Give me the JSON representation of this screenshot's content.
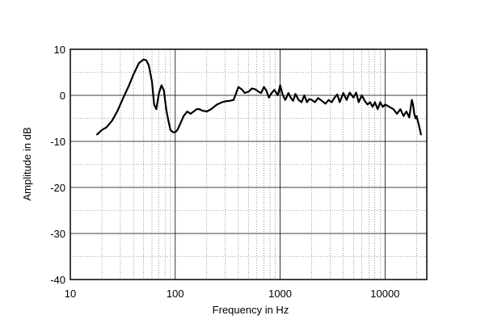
{
  "chart_data": {
    "type": "line",
    "xlabel": "Frequency  in  Hz",
    "ylabel": "Amplitude in dB",
    "x_scale": "log",
    "xlim": [
      10,
      25000
    ],
    "ylim": [
      -40,
      10
    ],
    "x_major_ticks": [
      10,
      100,
      1000,
      10000
    ],
    "x_tick_labels": [
      "10",
      "100",
      "1000",
      "10000"
    ],
    "y_ticks": [
      10,
      0,
      -10,
      -20,
      -30,
      -40
    ],
    "y_tick_labels": [
      "10",
      "0",
      "-10",
      "-20",
      "-30",
      "-40"
    ],
    "y_minor_step": 5,
    "grid": true,
    "line_color": "#000000",
    "series": [
      {
        "x": [
          18,
          20,
          22,
          25,
          28,
          32,
          36,
          40,
          45,
          50,
          53,
          56,
          60,
          63,
          66,
          70,
          74,
          78,
          82,
          86,
          90,
          95,
          100,
          105,
          110,
          115,
          120,
          130,
          140,
          150,
          160,
          170,
          180,
          200,
          220,
          250,
          280,
          300,
          330,
          360,
          400,
          430,
          460,
          500,
          540,
          580,
          620,
          660,
          700,
          740,
          780,
          830,
          880,
          950,
          1000,
          1060,
          1120,
          1200,
          1260,
          1330,
          1400,
          1500,
          1600,
          1700,
          1800,
          1900,
          2000,
          2150,
          2300,
          2500,
          2700,
          2900,
          3100,
          3300,
          3500,
          3700,
          4000,
          4300,
          4600,
          5000,
          5300,
          5600,
          6000,
          6400,
          6800,
          7200,
          7600,
          8000,
          8500,
          9000,
          9500,
          10000,
          11000,
          12000,
          13000,
          14000,
          15000,
          16000,
          17000,
          18000,
          18500,
          19000,
          19500,
          20000,
          21000,
          22000
        ],
        "y": [
          -8.5,
          -7.5,
          -7,
          -5.5,
          -3.5,
          -0.5,
          2,
          4.5,
          7,
          7.8,
          7.6,
          6.5,
          3,
          -2,
          -3,
          0.5,
          2.2,
          1,
          -3,
          -5.5,
          -7.5,
          -8,
          -8,
          -7.5,
          -6.5,
          -5.5,
          -4.5,
          -3.5,
          -4,
          -3.5,
          -3,
          -3,
          -3.3,
          -3.5,
          -3,
          -2,
          -1.5,
          -1.3,
          -1.2,
          -1,
          1.8,
          1.3,
          0.5,
          0.8,
          1.5,
          1.3,
          0.8,
          0.5,
          1.8,
          1,
          -0.5,
          0.5,
          1.2,
          0,
          2.2,
          0,
          -1,
          0.5,
          -0.5,
          -1.2,
          0.3,
          -1,
          -1.5,
          0,
          -1.5,
          -0.8,
          -1,
          -1.5,
          -0.6,
          -1.2,
          -1.8,
          -1,
          -1.5,
          -0.5,
          0.2,
          -1.5,
          0.5,
          -1,
          0.6,
          -0.5,
          0.6,
          -1.5,
          0,
          -1.2,
          -2,
          -1.5,
          -2.5,
          -1.5,
          -3,
          -1.5,
          -2.5,
          -2,
          -2.5,
          -3,
          -4,
          -3,
          -4.5,
          -3.5,
          -4.8,
          -1,
          -2,
          -4,
          -5,
          -4.5,
          -6.5,
          -8.5
        ]
      }
    ]
  }
}
